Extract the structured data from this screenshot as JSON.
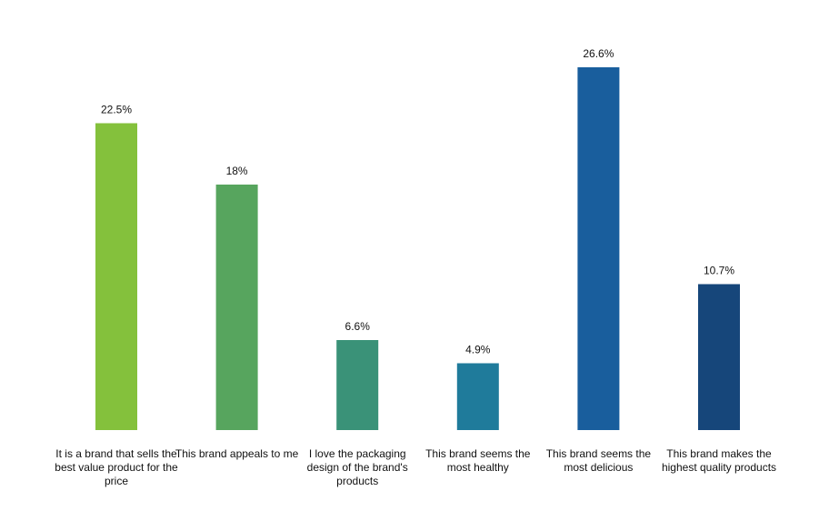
{
  "chart_data": {
    "type": "bar",
    "categories": [
      "It is a brand that sells the best value product for the price",
      "This brand appeals to me",
      "I love the packaging design of the brand's products",
      "This brand seems the most healthy",
      "This brand seems the most delicious",
      "This brand makes the highest quality products"
    ],
    "values": [
      22.5,
      18,
      6.6,
      4.9,
      26.6,
      10.7
    ],
    "value_labels": [
      "22.5%",
      "18%",
      "6.6%",
      "4.9%",
      "26.6%",
      "10.7%"
    ],
    "colors": [
      "#84c13c",
      "#57a55e",
      "#3a9278",
      "#1f7b9b",
      "#195e9d",
      "#16467a"
    ],
    "title": "",
    "xlabel": "",
    "ylabel": "",
    "ylim": [
      0,
      30
    ],
    "grid": false,
    "legend": "none"
  }
}
